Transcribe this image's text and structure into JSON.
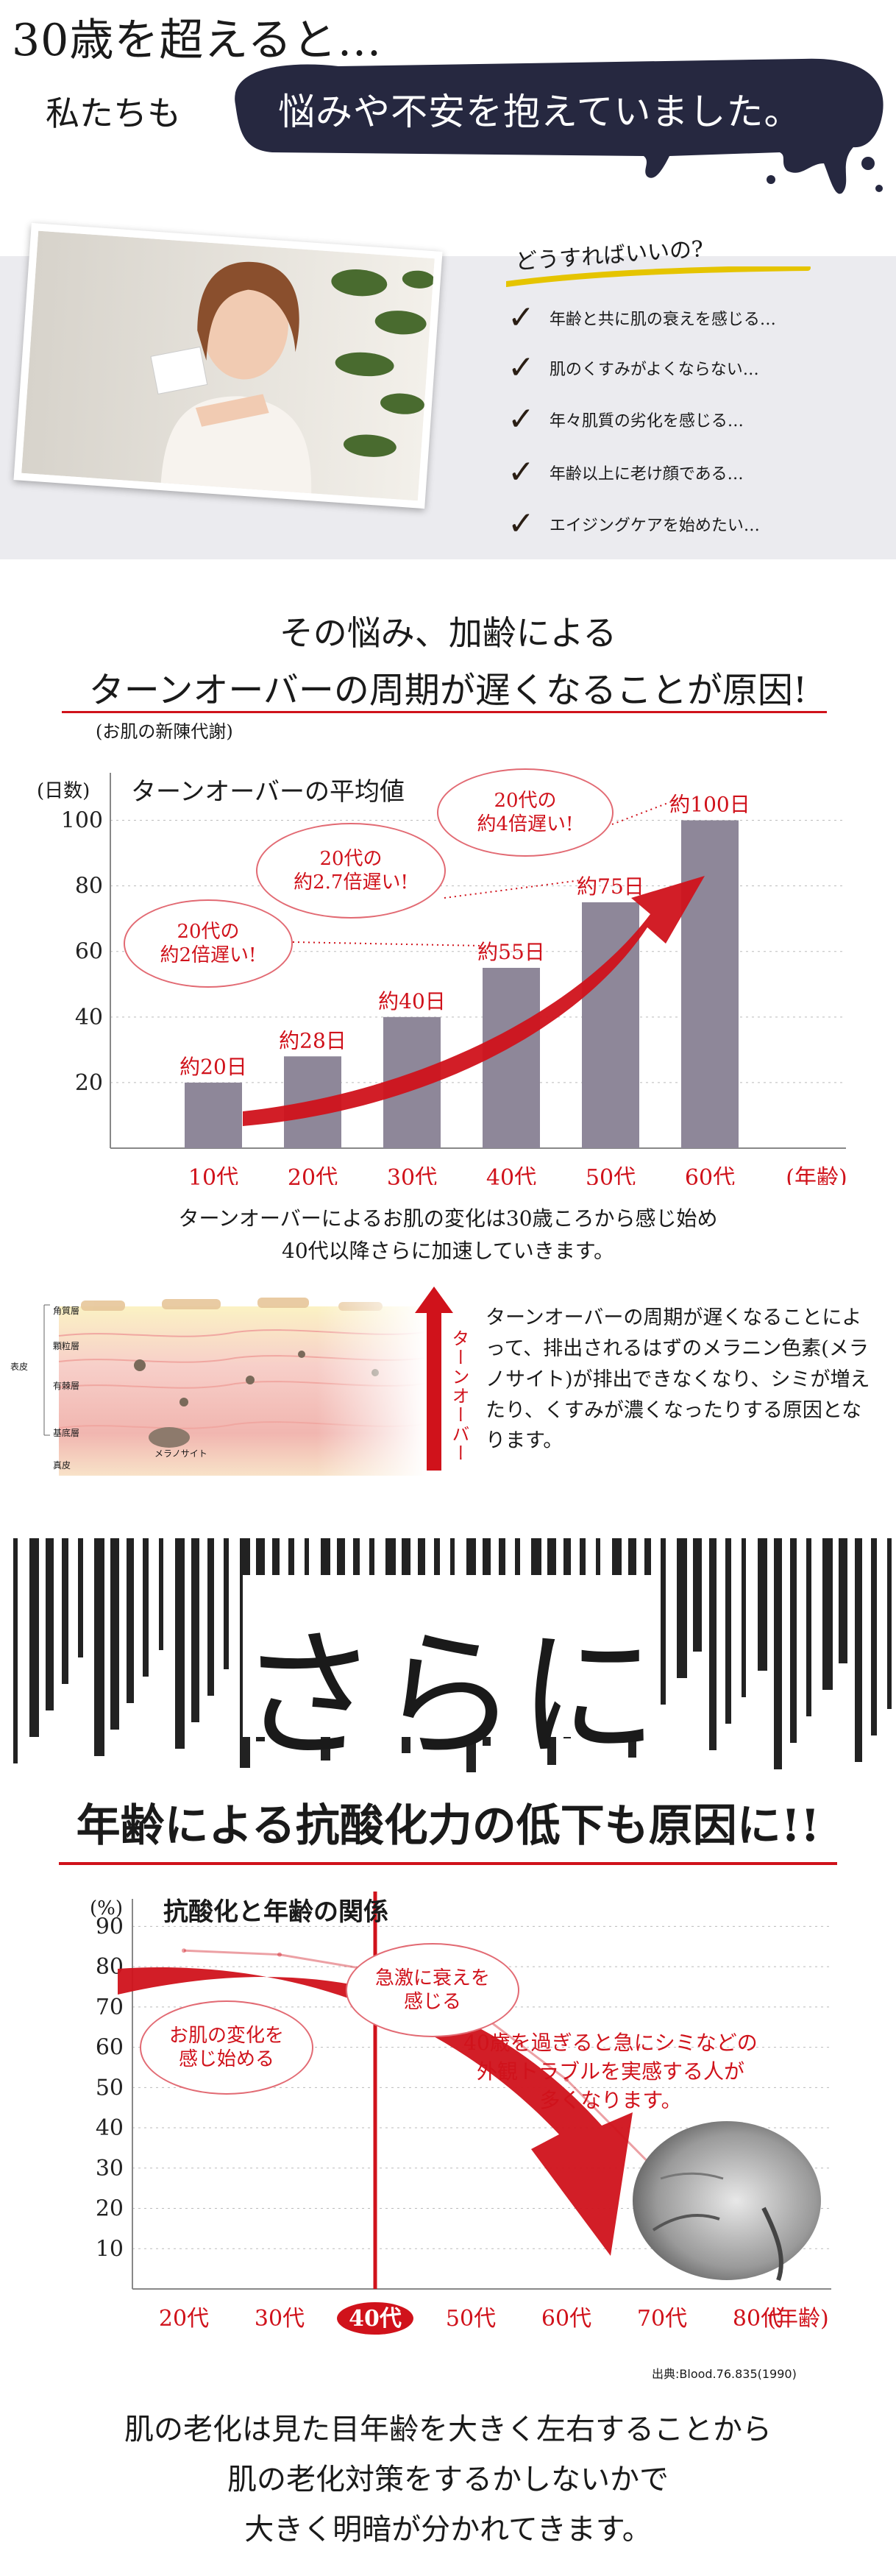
{
  "header": {
    "line1": "30歳を超えると…",
    "line2_lead": "私たちも",
    "line2_banner": "悩みや不安を抱えていました。"
  },
  "worries": {
    "title": "どうすればいいの?",
    "items": [
      "年齢と共に肌の衰えを感じる…",
      "肌のくすみがよくならない…",
      "年々肌質の劣化を感じる…",
      "年齢以上に老け顔である…",
      "エイジングケアを始めたい…"
    ]
  },
  "cause": {
    "line1": "その悩み、加齢による",
    "line2": "ターンオーバーの周期が遅くなることが原因!",
    "note": "(お肌の新陳代謝)"
  },
  "turnover_chart": {
    "unit_label": "(日数)",
    "title": "ターンオーバーの平均値",
    "year_label": "(年齢)",
    "callouts": [
      "20代の\n約2倍遅い!",
      "20代の\n約2.7倍遅い!",
      "20代の\n約4倍遅い!"
    ]
  },
  "chart_data": [
    {
      "type": "bar",
      "title": "ターンオーバーの平均値",
      "ylabel": "(日数)",
      "xlabel": "(年齢)",
      "ylim": [
        0,
        110
      ],
      "yticks": [
        20,
        40,
        60,
        80,
        100
      ],
      "categories": [
        "10代",
        "20代",
        "30代",
        "40代",
        "50代",
        "60代"
      ],
      "values": [
        20,
        28,
        40,
        55,
        75,
        100
      ],
      "data_labels": [
        "約20日",
        "約28日",
        "約40日",
        "約55日",
        "約75日",
        "約100日"
      ],
      "bar_color": "#8e8799",
      "grid": true
    },
    {
      "type": "line",
      "title": "抗酸化と年齢の関係",
      "ylabel": "(%)",
      "xlabel": "(年齢)",
      "ylim": [
        0,
        95
      ],
      "yticks": [
        10,
        20,
        30,
        40,
        50,
        60,
        70,
        80,
        90
      ],
      "categories": [
        "20代",
        "30代",
        "40代",
        "50代",
        "60代",
        "70代",
        "80代"
      ],
      "highlight_category": "40代",
      "series": [
        {
          "values": [
            84,
            83,
            79,
            70,
            52,
            28,
            8
          ]
        }
      ],
      "grid": true
    }
  ],
  "turnover_text": {
    "line1": "ターンオーバーによるお肌の変化は30歳ころから感じ始め",
    "line2": "40代以降さらに加速していきます。"
  },
  "skin": {
    "labels": [
      "角質層",
      "顆粒層",
      "有棘層",
      "基底層",
      "真皮"
    ],
    "epidermis": "表皮",
    "melanocyte": "メラノサイト",
    "arrow_label": "ターンオーバー",
    "explanation": "ターンオーバーの周期が遅くなることによって、排出されるはずのメラニン色素(メラノサイト)が排出できなくなり、シミが増えたり、くすみが濃くなったりする原因となります。"
  },
  "furthermore": {
    "big": "さらに",
    "headline": "年齢による抗酸化力の低下も原因に!!"
  },
  "antiox_chart": {
    "unit_label": "(%)",
    "title": "抗酸化と年齢の関係",
    "year_label": "(年齢)",
    "callout_left": "お肌の変化を\n感じ始める",
    "callout_right": "急激に衰えを\n感じる",
    "note": "40歳を過ぎると急にシミなどの\n外観トラブルを実感する人が\n多くなります。",
    "source": "出典:Blood.76.835(1990)"
  },
  "conclusion": {
    "line1": "肌の老化は見た目年齢を大きく左右することから",
    "line2": "肌の老化対策をするかしないかで",
    "line3": "大きく明暗が分かれてきます。"
  },
  "colors": {
    "accent_red": "#d0121b",
    "navy_banner": "#262840",
    "bar": "#8e8799",
    "gray_band": "#ebebef"
  }
}
